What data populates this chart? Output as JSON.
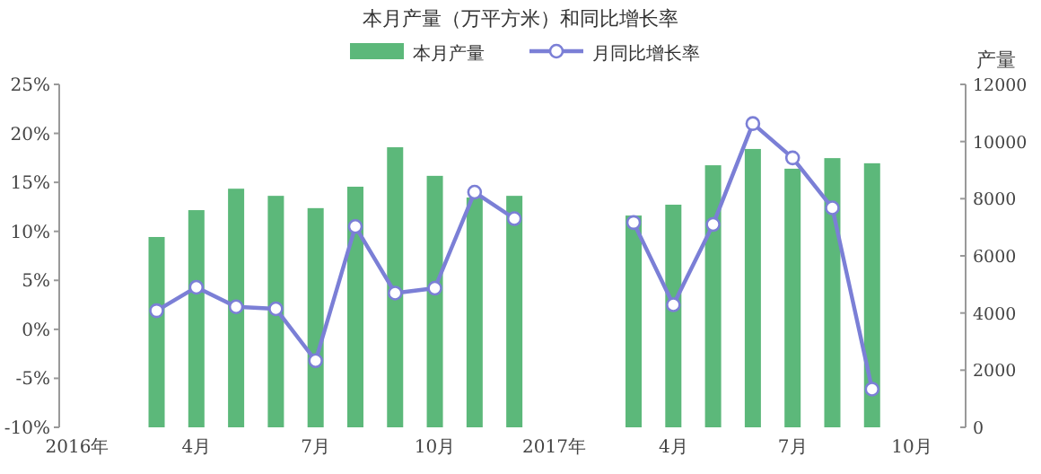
{
  "chart_data": {
    "type": "bar",
    "title": "本月产量（万平方米）和同比增长率",
    "categories": [
      "2016年",
      null,
      null,
      "4月",
      null,
      null,
      "7月",
      null,
      null,
      "10月",
      null,
      null,
      "2017年",
      null,
      null,
      "4月",
      null,
      null,
      "7月",
      null,
      null,
      "10月"
    ],
    "series": [
      {
        "name": "本月产量",
        "axis": "y2",
        "color": "#5cb87a",
        "values": [
          null,
          null,
          6660,
          7600,
          8350,
          8100,
          7670,
          8420,
          9800,
          8800,
          8040,
          8100,
          null,
          null,
          7410,
          7790,
          9170,
          9740,
          9050,
          9420,
          9240,
          null
        ]
      },
      {
        "name": "月同比增长率",
        "type": "line",
        "color": "#7b7fd6",
        "marker": "circle",
        "values": [
          null,
          null,
          1.9,
          4.3,
          2.3,
          2.1,
          -3.2,
          10.5,
          3.7,
          4.2,
          14.0,
          11.3,
          null,
          null,
          10.9,
          2.5,
          10.7,
          21.0,
          17.5,
          12.4,
          -6.1,
          null
        ]
      }
    ],
    "ylim": [
      -10,
      25
    ],
    "yticks": [
      {
        "value": -10,
        "label": "-10%"
      },
      {
        "value": -5,
        "label": "-5%"
      },
      {
        "value": 0,
        "label": "0%"
      },
      {
        "value": 5,
        "label": "5%"
      },
      {
        "value": 10,
        "label": "10%"
      },
      {
        "value": 15,
        "label": "15%"
      },
      {
        "value": 20,
        "label": "20%"
      },
      {
        "value": 25,
        "label": "25%"
      }
    ],
    "y2lim": [
      0,
      12000
    ],
    "y2ticks": [
      0,
      2000,
      4000,
      6000,
      8000,
      10000,
      12000
    ],
    "y2label": "产量",
    "legend": "top",
    "grid": false
  }
}
